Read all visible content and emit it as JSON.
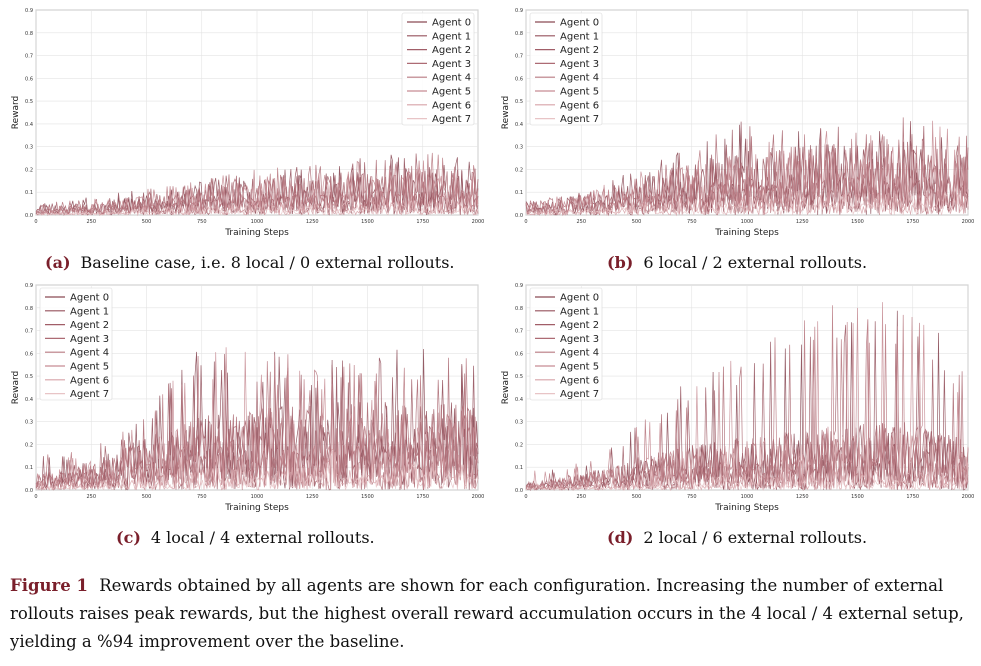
{
  "chart_data": [
    {
      "type": "line",
      "panel_label": "(a)",
      "caption": "Baseline case, i.e. 8 local / 0 external rollouts.",
      "xlabel": "Training Steps",
      "ylabel": "Reward",
      "xlim": [
        0,
        2000
      ],
      "ylim": [
        0,
        0.9
      ],
      "xticks": [
        "0",
        "250",
        "500",
        "750",
        "1000",
        "1250",
        "1500",
        "1750",
        "2000"
      ],
      "yticks": [
        "0.0",
        "0.1",
        "0.2",
        "0.3",
        "0.4",
        "0.5",
        "0.6",
        "0.7",
        "0.8",
        "0.9"
      ],
      "grid": true,
      "legend_position": "upper-right",
      "series": [
        {
          "name": "Agent 0",
          "color": "#8a4a55"
        },
        {
          "name": "Agent 1",
          "color": "#95525d"
        },
        {
          "name": "Agent 2",
          "color": "#a15e68"
        },
        {
          "name": "Agent 3",
          "color": "#ad6b74"
        },
        {
          "name": "Agent 4",
          "color": "#b97a82"
        },
        {
          "name": "Agent 5",
          "color": "#c78c93"
        },
        {
          "name": "Agent 6",
          "color": "#d7a3a8"
        },
        {
          "name": "Agent 7",
          "color": "#e8c4c6"
        }
      ],
      "envelope": {
        "x": [
          0,
          250,
          500,
          750,
          1000,
          1250,
          1500,
          1750,
          2000
        ],
        "peak": [
          0.05,
          0.08,
          0.12,
          0.16,
          0.2,
          0.23,
          0.26,
          0.28,
          0.24
        ],
        "typical": [
          0.02,
          0.03,
          0.05,
          0.07,
          0.09,
          0.1,
          0.11,
          0.12,
          0.11
        ]
      }
    },
    {
      "type": "line",
      "panel_label": "(b)",
      "caption": "6 local / 2 external rollouts.",
      "xlabel": "Training Steps",
      "ylabel": "Reward",
      "xlim": [
        0,
        2000
      ],
      "ylim": [
        0,
        0.9
      ],
      "xticks": [
        "0",
        "250",
        "500",
        "750",
        "1000",
        "1250",
        "1500",
        "1750",
        "2000"
      ],
      "yticks": [
        "0.0",
        "0.1",
        "0.2",
        "0.3",
        "0.4",
        "0.5",
        "0.6",
        "0.7",
        "0.8",
        "0.9"
      ],
      "grid": true,
      "legend_position": "upper-left",
      "series": [
        {
          "name": "Agent 0",
          "color": "#8a4a55"
        },
        {
          "name": "Agent 1",
          "color": "#95525d"
        },
        {
          "name": "Agent 2",
          "color": "#a15e68"
        },
        {
          "name": "Agent 3",
          "color": "#ad6b74"
        },
        {
          "name": "Agent 4",
          "color": "#b97a82"
        },
        {
          "name": "Agent 5",
          "color": "#c78c93"
        },
        {
          "name": "Agent 6",
          "color": "#d7a3a8"
        },
        {
          "name": "Agent 7",
          "color": "#e8c4c6"
        }
      ],
      "envelope": {
        "x": [
          0,
          250,
          500,
          750,
          1000,
          1250,
          1500,
          1750,
          2000
        ],
        "peak": [
          0.06,
          0.1,
          0.2,
          0.3,
          0.44,
          0.38,
          0.4,
          0.46,
          0.42
        ],
        "typical": [
          0.03,
          0.05,
          0.09,
          0.13,
          0.16,
          0.17,
          0.18,
          0.19,
          0.17
        ]
      }
    },
    {
      "type": "line",
      "panel_label": "(c)",
      "caption": "4 local / 4 external rollouts.",
      "xlabel": "Training Steps",
      "ylabel": "Reward",
      "xlim": [
        0,
        2000
      ],
      "ylim": [
        0,
        0.9
      ],
      "xticks": [
        "0",
        "250",
        "500",
        "750",
        "1000",
        "1250",
        "1500",
        "1750",
        "2000"
      ],
      "yticks": [
        "0.0",
        "0.1",
        "0.2",
        "0.3",
        "0.4",
        "0.5",
        "0.6",
        "0.7",
        "0.8",
        "0.9"
      ],
      "grid": true,
      "legend_position": "upper-left",
      "series": [
        {
          "name": "Agent 0",
          "color": "#8a4a55"
        },
        {
          "name": "Agent 1",
          "color": "#95525d"
        },
        {
          "name": "Agent 2",
          "color": "#a15e68"
        },
        {
          "name": "Agent 3",
          "color": "#ad6b74"
        },
        {
          "name": "Agent 4",
          "color": "#b97a82"
        },
        {
          "name": "Agent 5",
          "color": "#c78c93"
        },
        {
          "name": "Agent 6",
          "color": "#d7a3a8"
        },
        {
          "name": "Agent 7",
          "color": "#e8c4c6"
        }
      ],
      "envelope": {
        "x": [
          0,
          250,
          500,
          750,
          1000,
          1250,
          1500,
          1750,
          2000
        ],
        "peak": [
          0.15,
          0.18,
          0.35,
          0.65,
          0.62,
          0.58,
          0.63,
          0.62,
          0.6
        ],
        "typical": [
          0.04,
          0.07,
          0.13,
          0.18,
          0.2,
          0.21,
          0.22,
          0.22,
          0.21
        ]
      }
    },
    {
      "type": "line",
      "panel_label": "(d)",
      "caption": "2 local / 6 external rollouts.",
      "xlabel": "Training Steps",
      "ylabel": "Reward",
      "xlim": [
        0,
        2000
      ],
      "ylim": [
        0,
        0.9
      ],
      "xticks": [
        "0",
        "250",
        "500",
        "750",
        "1000",
        "1250",
        "1500",
        "1750",
        "2000"
      ],
      "yticks": [
        "0.0",
        "0.1",
        "0.2",
        "0.3",
        "0.4",
        "0.5",
        "0.6",
        "0.7",
        "0.8",
        "0.9"
      ],
      "grid": true,
      "legend_position": "upper-left",
      "series": [
        {
          "name": "Agent 0",
          "color": "#8a4a55"
        },
        {
          "name": "Agent 1",
          "color": "#95525d"
        },
        {
          "name": "Agent 2",
          "color": "#a15e68"
        },
        {
          "name": "Agent 3",
          "color": "#ad6b74"
        },
        {
          "name": "Agent 4",
          "color": "#b97a82"
        },
        {
          "name": "Agent 5",
          "color": "#c78c93"
        },
        {
          "name": "Agent 6",
          "color": "#d7a3a8"
        },
        {
          "name": "Agent 7",
          "color": "#e8c4c6"
        }
      ],
      "envelope": {
        "x": [
          0,
          250,
          500,
          750,
          1000,
          1250,
          1500,
          1750,
          2000
        ],
        "peak": [
          0.08,
          0.12,
          0.3,
          0.5,
          0.6,
          0.85,
          0.8,
          0.88,
          0.5
        ],
        "typical": [
          0.02,
          0.04,
          0.08,
          0.11,
          0.13,
          0.15,
          0.16,
          0.17,
          0.12
        ]
      }
    }
  ],
  "figure": {
    "label": "Figure 1",
    "text": "Rewards obtained by all agents are shown for each configuration. Increasing the number of external rollouts raises peak rewards, but the highest overall reward accumulation occurs in the 4 local / 4 external setup, yielding a %94 improvement over the baseline."
  }
}
